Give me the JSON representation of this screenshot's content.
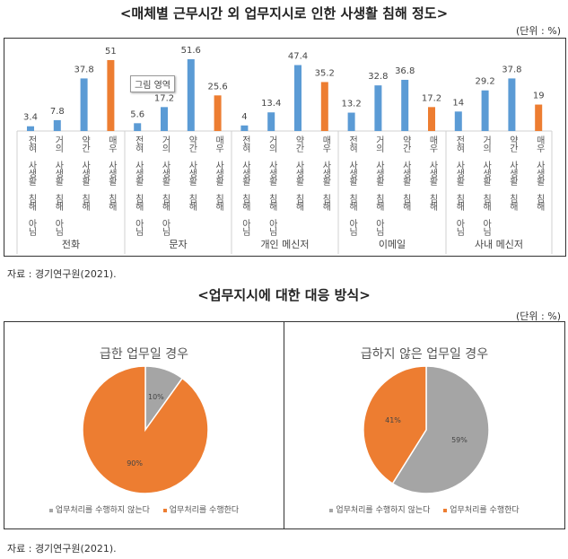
{
  "section1": {
    "title": "<매체별 근무시간 외 업무지시로 인한 사생활 침해 정도>",
    "unit": "(단위 : %)",
    "tooltip": "그림 영역",
    "source": "자료 : 경기연구원(2021)."
  },
  "section2": {
    "title": "<업무지시에 대한 대응 방식>",
    "unit": "(단위 : %)",
    "source": "자료 : 경기연구원(2021)."
  },
  "colors": {
    "blue": "#5B9BD5",
    "orange": "#ED7D31",
    "gray": "#A5A5A5"
  },
  "chart_data": [
    {
      "type": "bar",
      "title": "<매체별 근무시간 외 업무지시로 인한 사생활 침해 정도>",
      "groups": [
        "전화",
        "문자",
        "개인 메신저",
        "이메일",
        "사내 메신저"
      ],
      "categories": [
        "전혀 사생활 침해 아님",
        "거의 사생활 침해 아님",
        "약간 사생활 침해",
        "매우 사생활 침해"
      ],
      "values": [
        [
          3.4,
          7.8,
          37.8,
          51
        ],
        [
          5.6,
          17.2,
          51.6,
          25.6
        ],
        [
          4,
          13.4,
          47.4,
          35.2
        ],
        [
          13.2,
          32.8,
          36.8,
          17.2
        ],
        [
          14,
          29.2,
          37.8,
          19
        ]
      ],
      "bar_colors": [
        "#5B9BD5",
        "#5B9BD5",
        "#5B9BD5",
        "#ED7D31"
      ],
      "grid": false
    },
    {
      "type": "pie",
      "title": "급한 업무일 경우",
      "labels": [
        "업무처리를 수행하지 않는다",
        "업무처리를 수행한다"
      ],
      "values": [
        10,
        90
      ],
      "colors": [
        "#A5A5A5",
        "#ED7D31"
      ],
      "legend": "bottom"
    },
    {
      "type": "pie",
      "title": "급하지 않은 업무일 경우",
      "labels": [
        "업무처리를 수행하지 않는다",
        "업무처리를 수행한다"
      ],
      "values": [
        59,
        41
      ],
      "colors": [
        "#A5A5A5",
        "#ED7D31"
      ],
      "legend": "bottom"
    }
  ]
}
